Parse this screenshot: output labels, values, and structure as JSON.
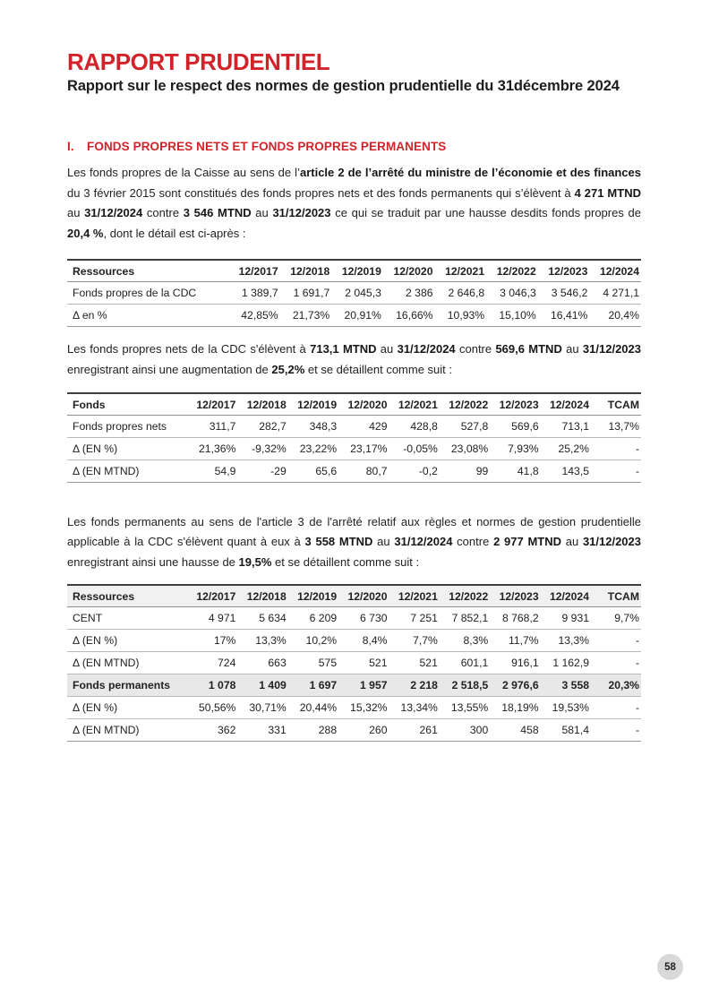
{
  "page": {
    "title": "RAPPORT PRUDENTIEL",
    "subtitle": "Rapport sur le respect des normes de gestion prudentielle du 31décembre 2024",
    "page_number": "58",
    "accent_color": "#D2232A"
  },
  "section": {
    "numeral": "I.",
    "heading": "FONDS PROPRES NETS ET FONDS PROPRES PERMANENTS"
  },
  "paragraphs": {
    "p1": {
      "segments": [
        {
          "t": "Les fonds propres de la Caisse au sens de l’",
          "b": false
        },
        {
          "t": "article 2 de l’arrêté du ministre de l’économie et des finances",
          "b": true
        },
        {
          "t": " du 3 février 2015 sont constitués des fonds propres nets et des fonds permanents qui s’élèvent à ",
          "b": false
        },
        {
          "t": "4 271 MTND",
          "b": true
        },
        {
          "t": " au ",
          "b": false
        },
        {
          "t": "31/12/2024",
          "b": true
        },
        {
          "t": " contre ",
          "b": false
        },
        {
          "t": "3 546 MTND",
          "b": true
        },
        {
          "t": " au ",
          "b": false
        },
        {
          "t": "31/12/2023",
          "b": true
        },
        {
          "t": " ce qui se traduit par une hausse desdits fonds propres de ",
          "b": false
        },
        {
          "t": "20,4 %",
          "b": true
        },
        {
          "t": ", dont le détail est ci-après :",
          "b": false
        }
      ]
    },
    "p2": {
      "segments": [
        {
          "t": "Les fonds propres nets de la CDC s'élèvent à ",
          "b": false
        },
        {
          "t": "713,1 MTND",
          "b": true
        },
        {
          "t": " au ",
          "b": false
        },
        {
          "t": "31/12/2024",
          "b": true
        },
        {
          "t": " contre ",
          "b": false
        },
        {
          "t": "569,6 MTND",
          "b": true
        },
        {
          "t": " au ",
          "b": false
        },
        {
          "t": "31/12/2023",
          "b": true
        },
        {
          "t": " enregistrant ainsi une augmentation de ",
          "b": false
        },
        {
          "t": "25,2%",
          "b": true
        },
        {
          "t": " et se détaillent comme suit :",
          "b": false
        }
      ]
    },
    "p3": {
      "segments": [
        {
          "t": "Les fonds permanents au sens de l'article 3 de l'arrêté relatif aux règles et normes de gestion prudentielle applicable à la CDC s'élèvent quant à eux à ",
          "b": false
        },
        {
          "t": "3 558 MTND",
          "b": true
        },
        {
          "t": " au ",
          "b": false
        },
        {
          "t": "31/12/2024",
          "b": true
        },
        {
          "t": " contre ",
          "b": false
        },
        {
          "t": "2 977 MTND",
          "b": true
        },
        {
          "t": " au ",
          "b": false
        },
        {
          "t": "31/12/2023",
          "b": true
        },
        {
          "t": " enregistrant ainsi une hausse de ",
          "b": false
        },
        {
          "t": "19,5%",
          "b": true
        },
        {
          "t": " et se détaillent comme suit :",
          "b": false
        }
      ]
    }
  },
  "tables": [
    {
      "name": "fonds-propres-cdc",
      "headers": [
        "Ressources",
        "12/2017",
        "12/2018",
        "12/2019",
        "12/2020",
        "12/2021",
        "12/2022",
        "12/2023",
        "12/2024"
      ],
      "rows": [
        {
          "cells": [
            "Fonds propres de la CDC",
            "1 389,7",
            "1 691,7",
            "2 045,3",
            "2 386",
            "2 646,8",
            "3 046,3",
            "3 546,2",
            "4 271,1"
          ],
          "bold": false,
          "shaded": false
        },
        {
          "cells": [
            "Δ en %",
            "42,85%",
            "21,73%",
            "20,91%",
            "16,66%",
            "10,93%",
            "15,10%",
            "16,41%",
            "20,4%"
          ],
          "bold": false,
          "shaded": false
        }
      ]
    },
    {
      "name": "fonds-propres-nets",
      "headers": [
        "Fonds",
        "12/2017",
        "12/2018",
        "12/2019",
        "12/2020",
        "12/2021",
        "12/2022",
        "12/2023",
        "12/2024",
        "TCAM"
      ],
      "rows": [
        {
          "cells": [
            "Fonds propres nets",
            "311,7",
            "282,7",
            "348,3",
            "429",
            "428,8",
            "527,8",
            "569,6",
            "713,1",
            "13,7%"
          ],
          "bold": false,
          "shaded": false
        },
        {
          "cells": [
            "Δ (EN %)",
            "21,36%",
            "-9,32%",
            "23,22%",
            "23,17%",
            "-0,05%",
            "23,08%",
            "7,93%",
            "25,2%",
            "-"
          ],
          "bold": false,
          "shaded": false
        },
        {
          "cells": [
            "Δ (EN MTND)",
            "54,9",
            "-29",
            "65,6",
            "80,7",
            "-0,2",
            "99",
            "41,8",
            "143,5",
            "-"
          ],
          "bold": false,
          "shaded": false
        }
      ]
    },
    {
      "name": "fonds-permanents",
      "headers": [
        "Ressources",
        "12/2017",
        "12/2018",
        "12/2019",
        "12/2020",
        "12/2021",
        "12/2022",
        "12/2023",
        "12/2024",
        "TCAM"
      ],
      "rows": [
        {
          "cells": [
            "CENT",
            "4 971",
            "5 634",
            "6 209",
            "6 730",
            "7 251",
            "7 852,1",
            "8 768,2",
            "9 931",
            "9,7%"
          ],
          "bold": false,
          "shaded": false
        },
        {
          "cells": [
            "Δ (EN %)",
            "17%",
            "13,3%",
            "10,2%",
            "8,4%",
            "7,7%",
            "8,3%",
            "11,7%",
            "13,3%",
            "-"
          ],
          "bold": false,
          "shaded": false
        },
        {
          "cells": [
            "Δ (EN MTND)",
            "724",
            "663",
            "575",
            "521",
            "521",
            "601,1",
            "916,1",
            "1 162,9",
            "-"
          ],
          "bold": false,
          "shaded": false
        },
        {
          "cells": [
            "Fonds permanents",
            "1 078",
            "1 409",
            "1 697",
            "1 957",
            "2 218",
            "2 518,5",
            "2 976,6",
            "3 558",
            "20,3%"
          ],
          "bold": true,
          "shaded": true
        },
        {
          "cells": [
            "Δ (EN %)",
            "50,56%",
            "30,71%",
            "20,44%",
            "15,32%",
            "13,34%",
            "13,55%",
            "18,19%",
            "19,53%",
            "-"
          ],
          "bold": false,
          "shaded": false
        },
        {
          "cells": [
            "Δ (EN MTND)",
            "362",
            "331",
            "288",
            "260",
            "261",
            "300",
            "458",
            "581,4",
            "-"
          ],
          "bold": false,
          "shaded": false
        }
      ]
    }
  ]
}
